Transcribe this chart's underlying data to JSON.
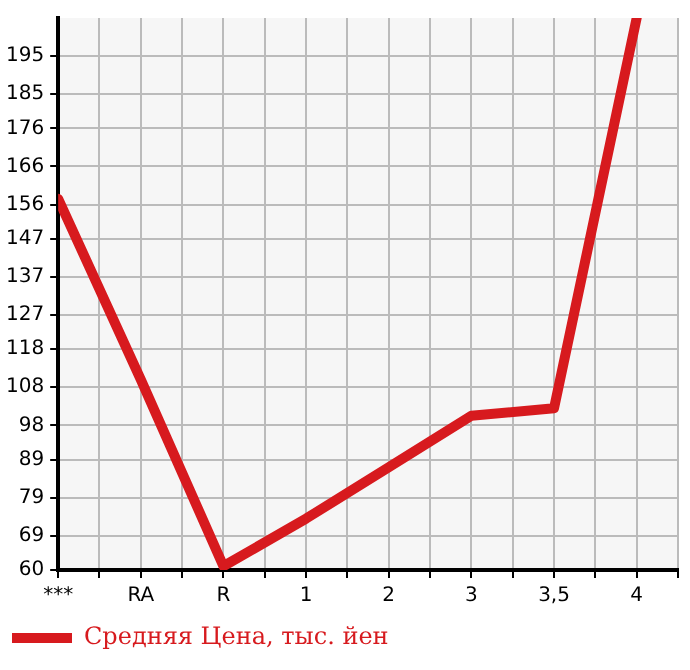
{
  "chart_data": {
    "type": "line",
    "categories": [
      "***",
      "RA",
      "R",
      "1",
      "2",
      "3",
      "3,5",
      "4"
    ],
    "series": [
      {
        "name": "Средняя Цена, тыс. йен",
        "color": "#d71a1e",
        "values": [
          157.5,
          110,
          61,
          73.5,
          87,
          100.5,
          102.5,
          205
        ]
      }
    ],
    "ylim": [
      60,
      205
    ],
    "yticks": [
      60,
      69,
      79,
      89,
      98,
      108,
      118,
      127,
      137,
      147,
      156,
      166,
      176,
      185,
      195
    ],
    "grid": true,
    "legend": "bottom left",
    "marker": "none",
    "line_style": "solid"
  }
}
